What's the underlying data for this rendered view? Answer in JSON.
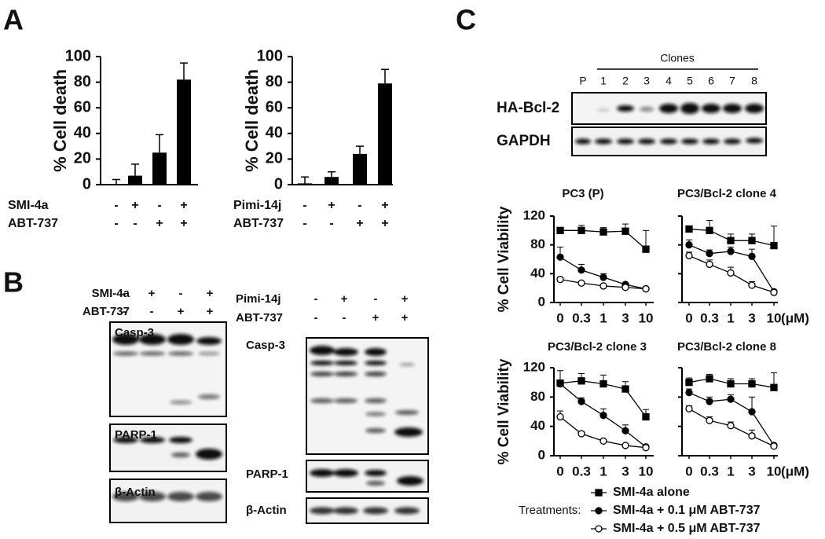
{
  "panel_labels": [
    "A",
    "B",
    "C"
  ],
  "chart_data": [
    {
      "type": "bar",
      "ylabel": "% Cell death",
      "ylim": [
        0,
        100
      ],
      "yticks": [
        0,
        20,
        40,
        60,
        80,
        100
      ],
      "color": "#000000",
      "values": [
        0,
        7,
        25,
        82
      ],
      "errors": [
        4,
        9,
        14,
        13
      ],
      "conditions": [
        {
          "name": "SMI-4a",
          "signs": [
            "-",
            "+",
            "-",
            "+"
          ]
        },
        {
          "name": "ABT-737",
          "signs": [
            "-",
            "-",
            "+",
            "+"
          ]
        }
      ]
    },
    {
      "type": "bar",
      "ylabel": "% Cell death",
      "ylim": [
        0,
        100
      ],
      "yticks": [
        0,
        20,
        40,
        60,
        80,
        100
      ],
      "color": "#000000",
      "values": [
        1,
        6,
        24,
        79
      ],
      "errors": [
        5,
        4,
        6,
        11
      ],
      "conditions": [
        {
          "name": "Pimi-14j",
          "signs": [
            "-",
            "+",
            "-",
            "+"
          ]
        },
        {
          "name": "ABT-737",
          "signs": [
            "-",
            "-",
            "+",
            "+"
          ]
        }
      ]
    },
    {
      "type": "line",
      "title": "PC3 (P)",
      "ylabel": "% Cell Viability",
      "categories": [
        "0",
        "0.3",
        "1",
        "3",
        "10"
      ],
      "ylim": [
        0,
        120
      ],
      "yticks": [
        0,
        40,
        80,
        120
      ],
      "series": [
        {
          "name": "SMI-4a alone",
          "marker": "square",
          "color": "#000000",
          "values": [
            100,
            100,
            98,
            99,
            74
          ],
          "errors": [
            4,
            7,
            6,
            10,
            26
          ]
        },
        {
          "name": "SMI-4a + 0.1 μM ABT-737",
          "marker": "circle",
          "color": "#000000",
          "values": [
            63,
            45,
            35,
            25,
            19
          ],
          "errors": [
            14,
            8,
            5,
            2,
            2
          ]
        },
        {
          "name": "SMI-4a + 0.5 μM ABT-737",
          "marker": "open-circle",
          "color": "#000000",
          "values": [
            32,
            27,
            23,
            21,
            19
          ],
          "errors": [
            3,
            2,
            2,
            2,
            2
          ]
        }
      ]
    },
    {
      "type": "line",
      "title": "PC3/Bcl-2 clone 4",
      "xunit": "(μM)",
      "categories": [
        "0",
        "0.3",
        "1",
        "3",
        "10"
      ],
      "ylim": [
        0,
        120
      ],
      "yticks": [
        0,
        40,
        80,
        120
      ],
      "series": [
        {
          "marker": "square",
          "color": "#000000",
          "values": [
            102,
            100,
            86,
            86,
            79
          ],
          "errors": [
            4,
            14,
            9,
            9,
            27
          ]
        },
        {
          "marker": "circle",
          "color": "#000000",
          "values": [
            80,
            68,
            71,
            64,
            15
          ],
          "errors": [
            7,
            5,
            6,
            10,
            2
          ]
        },
        {
          "marker": "open-circle",
          "color": "#000000",
          "values": [
            65,
            53,
            41,
            24,
            14
          ],
          "errors": [
            5,
            6,
            8,
            5,
            2
          ]
        }
      ]
    },
    {
      "type": "line",
      "title": "PC3/Bcl-2 clone 3",
      "ylabel": "% Cell Viability",
      "categories": [
        "0",
        "0.3",
        "1",
        "3",
        "10"
      ],
      "ylim": [
        0,
        120
      ],
      "yticks": [
        0,
        40,
        80,
        120
      ],
      "series": [
        {
          "marker": "square",
          "color": "#000000",
          "values": [
            99,
            102,
            98,
            91,
            53
          ],
          "errors": [
            17,
            10,
            12,
            10,
            10
          ]
        },
        {
          "marker": "circle",
          "color": "#000000",
          "values": [
            98,
            74,
            55,
            34,
            12
          ],
          "errors": [
            4,
            5,
            9,
            8,
            2
          ]
        },
        {
          "marker": "open-circle",
          "color": "#000000",
          "values": [
            53,
            30,
            20,
            14,
            11
          ],
          "errors": [
            8,
            3,
            2,
            2,
            2
          ]
        }
      ]
    },
    {
      "type": "line",
      "title": "PC3/Bcl-2 clone 8",
      "xunit": "(μM)",
      "categories": [
        "0",
        "0.3",
        "1",
        "3",
        "10"
      ],
      "ylim": [
        0,
        120
      ],
      "yticks": [
        0,
        40,
        80,
        120
      ],
      "series": [
        {
          "marker": "square",
          "color": "#000000",
          "values": [
            100,
            105,
            98,
            98,
            93
          ],
          "errors": [
            6,
            6,
            7,
            7,
            20
          ]
        },
        {
          "marker": "circle",
          "color": "#000000",
          "values": [
            86,
            74,
            77,
            60,
            14
          ],
          "errors": [
            5,
            6,
            6,
            20,
            2
          ]
        },
        {
          "marker": "open-circle",
          "color": "#000000",
          "values": [
            64,
            48,
            41,
            27,
            13
          ],
          "errors": [
            4,
            5,
            5,
            8,
            2
          ]
        }
      ]
    }
  ],
  "legend": {
    "title": "Treatments:"
  },
  "blots_b": [
    {
      "conditions": [
        {
          "name": "SMI-4a",
          "signs": [
            "-",
            "+",
            "-",
            "+"
          ]
        },
        {
          "name": "ABT-737",
          "signs": [
            "-",
            "-",
            "+",
            "+"
          ]
        }
      ],
      "rows": [
        "Casp-3",
        "PARP-1",
        "β-Actin"
      ]
    },
    {
      "conditions": [
        {
          "name": "Pimi-14j",
          "signs": [
            "-",
            "+",
            "-",
            "+"
          ]
        },
        {
          "name": "ABT-737",
          "signs": [
            "-",
            "-",
            "+",
            "+"
          ]
        }
      ],
      "rows": [
        "Casp-3",
        "PARP-1",
        "β-Actin"
      ]
    }
  ],
  "blot_c": {
    "group_label": "Clones",
    "lanes": [
      "P",
      "1",
      "2",
      "3",
      "4",
      "5",
      "6",
      "7",
      "8"
    ],
    "rows": [
      "HA-Bcl-2",
      "GAPDH"
    ]
  }
}
